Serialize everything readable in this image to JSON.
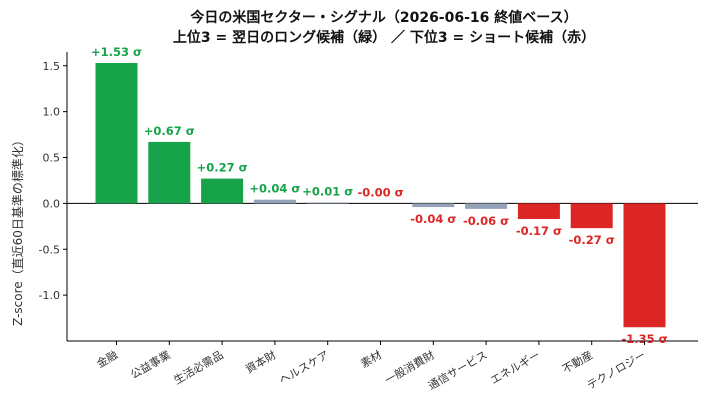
{
  "colors": {
    "positive": "#16a34a",
    "negative": "#dc2626",
    "neutral": "#94a3b8",
    "axis": "#000000"
  },
  "chart_data": {
    "type": "bar",
    "title_line1": "今日の米国セクター・シグナル（2026-06-16 終値ベース）",
    "title_line2": "上位3 = 翌日のロング候補（緑） ／ 下位3 = ショート候補（赤）",
    "xlabel": "",
    "ylabel": "Z-score（直近60日基準の標準化）",
    "ylim": [
      -1.5,
      1.65
    ],
    "yticks": [
      -1.0,
      -0.5,
      0.0,
      0.5,
      1.0,
      1.5
    ],
    "ytick_labels": [
      "-1.0",
      "-0.5",
      "0.0",
      "0.5",
      "1.0",
      "1.5"
    ],
    "grid": false,
    "categories": [
      "金融",
      "公益事業",
      "生活必需品",
      "資本財",
      "ヘルスケア",
      "素材",
      "一般消費財",
      "通信サービス",
      "エネルギー",
      "不動産",
      "テクノロジー"
    ],
    "values": [
      1.53,
      0.67,
      0.27,
      0.04,
      0.01,
      -0.0,
      -0.04,
      -0.06,
      -0.17,
      -0.27,
      -1.35
    ],
    "labels": [
      "+1.53 σ",
      "+0.67 σ",
      "+0.27 σ",
      "+0.04 σ",
      "+0.01 σ",
      "-0.00 σ",
      "-0.04 σ",
      "-0.06 σ",
      "-0.17 σ",
      "-0.27 σ",
      "-1.35 σ"
    ],
    "signal": [
      "long",
      "long",
      "long",
      "neutral",
      "neutral",
      "neutral",
      "neutral",
      "neutral",
      "short",
      "short",
      "short"
    ],
    "label_color": [
      "positive",
      "positive",
      "positive",
      "positive",
      "positive",
      "negative",
      "negative",
      "negative",
      "negative",
      "negative",
      "negative"
    ]
  }
}
